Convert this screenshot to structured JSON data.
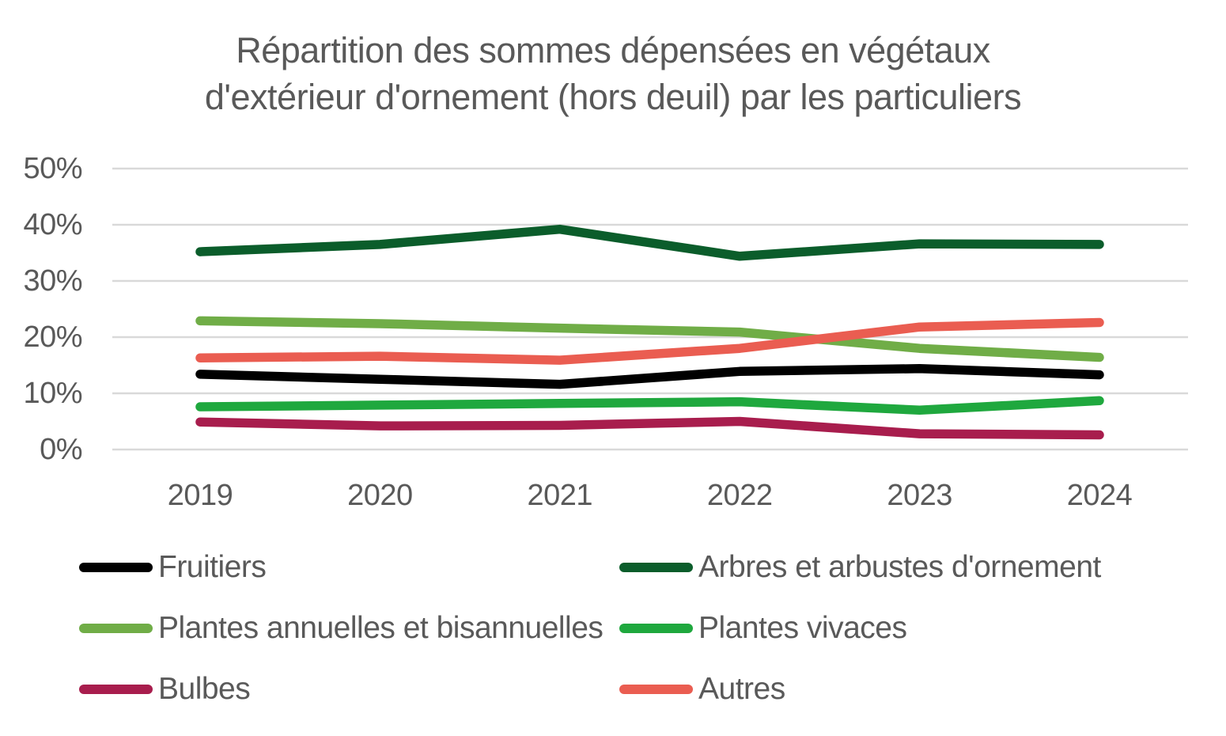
{
  "title": {
    "lines": [
      "Répartition des sommes dépensées en végétaux",
      "d'extérieur d'ornement (hors deuil) par les particuliers"
    ]
  },
  "chart_data": {
    "type": "line",
    "title": "Répartition des sommes dépensées en végétaux d'extérieur d'ornement (hors deuil) par les particuliers",
    "categories": [
      "2019",
      "2020",
      "2021",
      "2022",
      "2023",
      "2024"
    ],
    "series": [
      {
        "id": "fruitiers",
        "name": "Fruitiers",
        "color": "#000000",
        "values": [
          13.4,
          12.5,
          11.6,
          13.9,
          14.4,
          13.3
        ]
      },
      {
        "id": "arbres-et-arbustes-ornement",
        "name": "Arbres et arbustes d'ornement",
        "color": "#0B5D2B",
        "values": [
          35.2,
          36.5,
          39.2,
          34.4,
          36.6,
          36.5
        ]
      },
      {
        "id": "plantes-annuelles-bisannuelles",
        "name": "Plantes annuelles et bisannuelles",
        "color": "#70AD47",
        "values": [
          22.9,
          22.4,
          21.6,
          20.9,
          18.0,
          16.4
        ]
      },
      {
        "id": "plantes-vivaces",
        "name": "Plantes vivaces",
        "color": "#1FA83E",
        "values": [
          7.6,
          7.9,
          8.2,
          8.5,
          7.0,
          8.7
        ]
      },
      {
        "id": "bulbes",
        "name": "Bulbes",
        "color": "#A81D4D",
        "values": [
          4.9,
          4.2,
          4.3,
          5.0,
          2.8,
          2.6
        ]
      },
      {
        "id": "autres",
        "name": "Autres",
        "color": "#EA5D51",
        "values": [
          16.3,
          16.6,
          15.9,
          18.0,
          21.8,
          22.6
        ]
      }
    ],
    "xlabel": "",
    "ylabel": "",
    "ylim": [
      0,
      50
    ],
    "y_ticks": [
      "0%",
      "10%",
      "20%",
      "30%",
      "40%",
      "50%"
    ],
    "grid": true,
    "legend_position": "bottom-two-columns"
  },
  "colors": {
    "grid": "#D9D9D9",
    "axis_text": "#595959",
    "title_text": "#595959",
    "background": "#FFFFFF"
  }
}
